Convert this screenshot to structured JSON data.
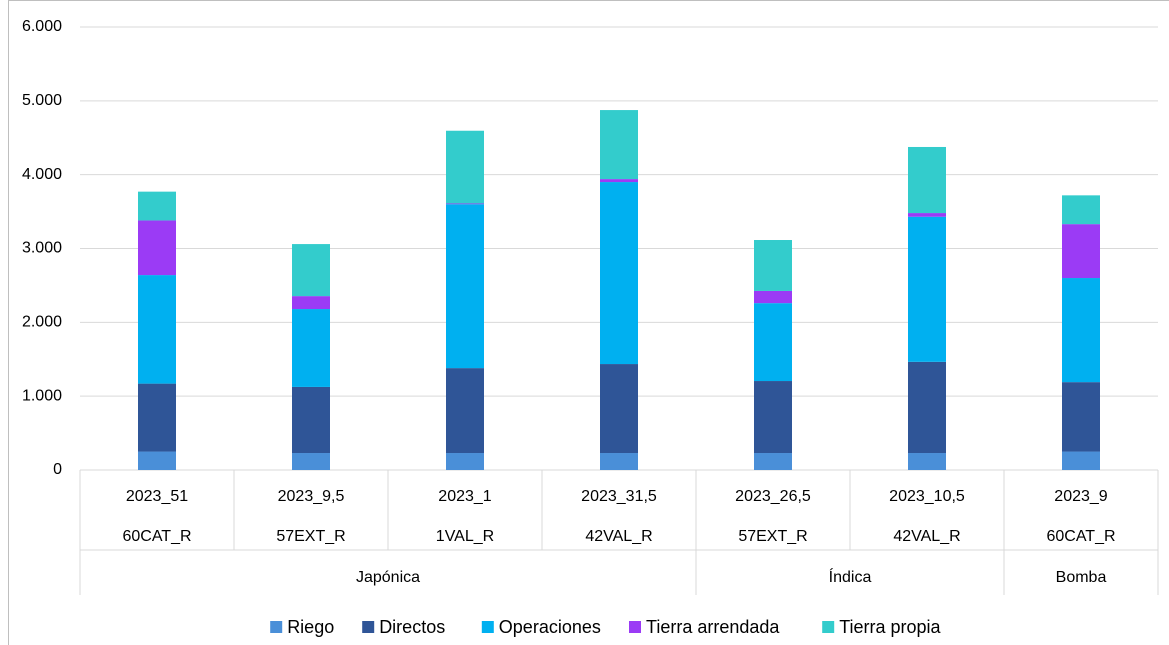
{
  "chart_data": {
    "type": "stacked_bar",
    "groups": [
      {
        "label": "Japónica",
        "categories": [
          {
            "year": "2023_51",
            "code": "60CAT_R"
          },
          {
            "year": "2023_9,5",
            "code": "57EXT_R"
          },
          {
            "year": "2023_1",
            "code": "1VAL_R"
          },
          {
            "year": "2023_31,5",
            "code": "42VAL_R"
          }
        ]
      },
      {
        "label": "Índica",
        "categories": [
          {
            "year": "2023_26,5",
            "code": "57EXT_R"
          },
          {
            "year": "2023_10,5",
            "code": "42VAL_R"
          }
        ]
      },
      {
        "label": "Bomba",
        "categories": [
          {
            "year": "2023_9",
            "code": "60CAT_R"
          }
        ]
      }
    ],
    "series": [
      {
        "name": "Riego",
        "color": "#4a8fd8",
        "values": [
          250,
          230,
          230,
          230,
          230,
          230,
          250
        ]
      },
      {
        "name": "Directos",
        "color": "#2f5597",
        "values": [
          920,
          895,
          1150,
          1205,
          975,
          1235,
          940
        ]
      },
      {
        "name": "Operaciones",
        "color": "#00b0f0",
        "values": [
          1470,
          1055,
          2220,
          2465,
          1055,
          1965,
          1410
        ]
      },
      {
        "name": "Tierra arrendada",
        "color": "#9b3bf5",
        "values": [
          740,
          175,
          10,
          40,
          165,
          50,
          730
        ]
      },
      {
        "name": "Tierra propia",
        "color": "#33cccc",
        "values": [
          390,
          705,
          985,
          935,
          690,
          895,
          390
        ]
      }
    ],
    "ylim": [
      0,
      6000
    ],
    "yticks": [
      0,
      {
        "value": 1000,
        "label": "1.000"
      },
      {
        "value": 2000,
        "label": "2.000"
      },
      {
        "value": 3000,
        "label": "3.000"
      },
      {
        "value": 4000,
        "label": "4.000"
      },
      {
        "value": 5000,
        "label": "5.000"
      },
      {
        "value": 6000,
        "label": "6.000"
      }
    ],
    "grid": true,
    "legend": "bottom"
  }
}
